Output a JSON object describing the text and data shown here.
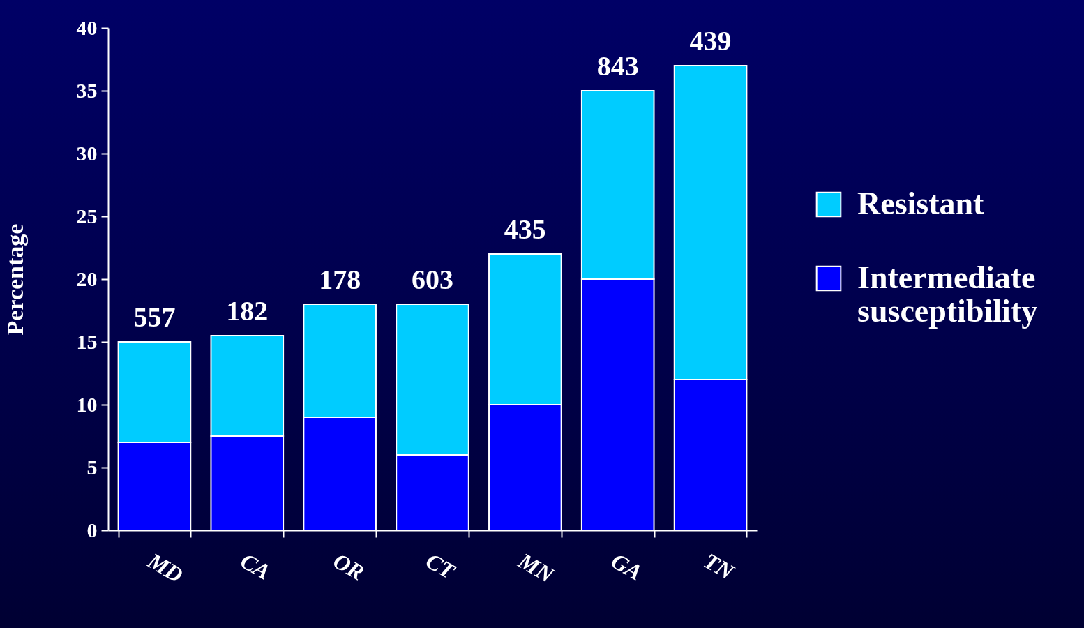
{
  "chart_data": {
    "type": "bar",
    "stacked": true,
    "ylabel": "Percentage",
    "categories": [
      "MD",
      "CA",
      "OR",
      "CT",
      "MN",
      "GA",
      "TN"
    ],
    "series": [
      {
        "name": "Intermediate susceptibility",
        "color": "#0000ff",
        "values": [
          7,
          7.5,
          9,
          6,
          10,
          20,
          12
        ]
      },
      {
        "name": "Resistant",
        "color": "#00ccff",
        "values": [
          8,
          8,
          9,
          12,
          12,
          15,
          25
        ]
      }
    ],
    "ylim": [
      0,
      40
    ],
    "yticks": [
      0,
      5,
      10,
      15,
      20,
      25,
      30,
      35,
      40
    ],
    "grid": false,
    "legend": "right",
    "annotations": [
      {
        "text": "557",
        "x": "MD",
        "y": 15
      },
      {
        "text": "182",
        "x": "CA",
        "y": 15.5
      },
      {
        "text": "178",
        "x": "OR",
        "y": 18
      },
      {
        "text": "603",
        "x": "CT",
        "y": 18
      },
      {
        "text": "435",
        "x": "MN",
        "y": 22
      },
      {
        "text": "843",
        "x": "GA",
        "y": 35
      },
      {
        "text": "439",
        "x": "TN",
        "y": 37
      }
    ]
  }
}
